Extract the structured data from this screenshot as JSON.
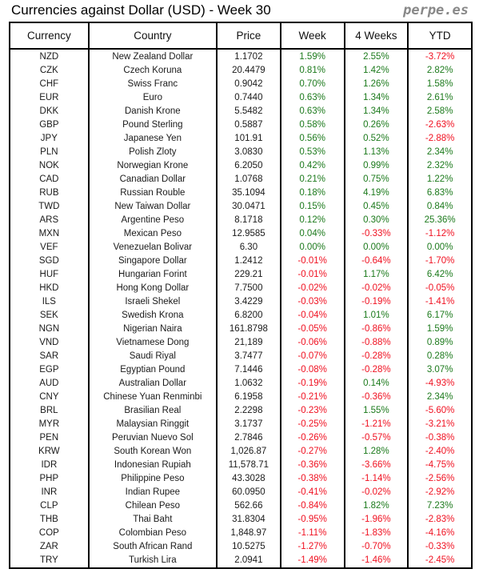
{
  "title": "Currencies against Dollar (USD) - Week 30",
  "brand": "perpe.es",
  "colors": {
    "positive": "#1c7a1c",
    "negative": "#f01020"
  },
  "headers": [
    "Currency",
    "Country",
    "Price",
    "Week",
    "4 Weeks",
    "YTD"
  ],
  "rows": [
    [
      "NZD",
      "New Zealand Dollar",
      "1.1702",
      "1.59%",
      "2.55%",
      "-3.72%"
    ],
    [
      "CZK",
      "Czech Koruna",
      "20.4479",
      "0.81%",
      "1.42%",
      "2.82%"
    ],
    [
      "CHF",
      "Swiss Franc",
      "0.9042",
      "0.70%",
      "1.26%",
      "1.58%"
    ],
    [
      "EUR",
      "Euro",
      "0.7440",
      "0.63%",
      "1.34%",
      "2.61%"
    ],
    [
      "DKK",
      "Danish Krone",
      "5.5482",
      "0.63%",
      "1.34%",
      "2.58%"
    ],
    [
      "GBP",
      "Pound Sterling",
      "0.5887",
      "0.58%",
      "0.26%",
      "-2.63%"
    ],
    [
      "JPY",
      "Japanese Yen",
      "101.91",
      "0.56%",
      "0.52%",
      "-2.88%"
    ],
    [
      "PLN",
      "Polish Zloty",
      "3.0830",
      "0.53%",
      "1.13%",
      "2.34%"
    ],
    [
      "NOK",
      "Norwegian Krone",
      "6.2050",
      "0.42%",
      "0.99%",
      "2.32%"
    ],
    [
      "CAD",
      "Canadian Dollar",
      "1.0768",
      "0.21%",
      "0.75%",
      "1.22%"
    ],
    [
      "RUB",
      "Russian Rouble",
      "35.1094",
      "0.18%",
      "4.19%",
      "6.83%"
    ],
    [
      "TWD",
      "New Taiwan Dollar",
      "30.0471",
      "0.15%",
      "0.45%",
      "0.84%"
    ],
    [
      "ARS",
      "Argentine Peso",
      "8.1718",
      "0.12%",
      "0.30%",
      "25.36%"
    ],
    [
      "MXN",
      "Mexican Peso",
      "12.9585",
      "0.04%",
      "-0.33%",
      "-1.12%"
    ],
    [
      "VEF",
      "Venezuelan Bolivar",
      "6.30",
      "0.00%",
      "0.00%",
      "0.00%"
    ],
    [
      "SGD",
      "Singapore Dollar",
      "1.2412",
      "-0.01%",
      "-0.64%",
      "-1.70%"
    ],
    [
      "HUF",
      "Hungarian Forint",
      "229.21",
      "-0.01%",
      "1.17%",
      "6.42%"
    ],
    [
      "HKD",
      "Hong Kong Dollar",
      "7.7500",
      "-0.02%",
      "-0.02%",
      "-0.05%"
    ],
    [
      "ILS",
      "Israeli Shekel",
      "3.4229",
      "-0.03%",
      "-0.19%",
      "-1.41%"
    ],
    [
      "SEK",
      "Swedish Krona",
      "6.8200",
      "-0.04%",
      "1.01%",
      "6.17%"
    ],
    [
      "NGN",
      "Nigerian Naira",
      "161.8798",
      "-0.05%",
      "-0.86%",
      "1.59%"
    ],
    [
      "VND",
      "Vietnamese Dong",
      "21,189",
      "-0.06%",
      "-0.88%",
      "0.89%"
    ],
    [
      "SAR",
      "Saudi Riyal",
      "3.7477",
      "-0.07%",
      "-0.28%",
      "0.28%"
    ],
    [
      "EGP",
      "Egyptian Pound",
      "7.1446",
      "-0.08%",
      "-0.28%",
      "3.07%"
    ],
    [
      "AUD",
      "Australian Dollar",
      "1.0632",
      "-0.19%",
      "0.14%",
      "-4.93%"
    ],
    [
      "CNY",
      "Chinese Yuan Renminbi",
      "6.1958",
      "-0.21%",
      "-0.36%",
      "2.34%"
    ],
    [
      "BRL",
      "Brasilian Real",
      "2.2298",
      "-0.23%",
      "1.55%",
      "-5.60%"
    ],
    [
      "MYR",
      "Malaysian Ringgit",
      "3.1737",
      "-0.25%",
      "-1.21%",
      "-3.21%"
    ],
    [
      "PEN",
      "Peruvian Nuevo Sol",
      "2.7846",
      "-0.26%",
      "-0.57%",
      "-0.38%"
    ],
    [
      "KRW",
      "South Korean Won",
      "1,026.87",
      "-0.27%",
      "1.28%",
      "-2.40%"
    ],
    [
      "IDR",
      "Indonesian Rupiah",
      "11,578.71",
      "-0.36%",
      "-3.66%",
      "-4.75%"
    ],
    [
      "PHP",
      "Philippine Peso",
      "43.3028",
      "-0.38%",
      "-1.14%",
      "-2.56%"
    ],
    [
      "INR",
      "Indian Rupee",
      "60.0950",
      "-0.41%",
      "-0.02%",
      "-2.92%"
    ],
    [
      "CLP",
      "Chilean Peso",
      "562.66",
      "-0.84%",
      "1.82%",
      "7.23%"
    ],
    [
      "THB",
      "Thai Baht",
      "31.8304",
      "-0.95%",
      "-1.96%",
      "-2.83%"
    ],
    [
      "COP",
      "Colombian Peso",
      "1,848.97",
      "-1.11%",
      "-1.83%",
      "-4.16%"
    ],
    [
      "ZAR",
      "South African Rand",
      "10.5275",
      "-1.27%",
      "-0.70%",
      "-0.33%"
    ],
    [
      "TRY",
      "Turkish Lira",
      "2.0941",
      "-1.49%",
      "-1.46%",
      "-2.45%"
    ]
  ]
}
